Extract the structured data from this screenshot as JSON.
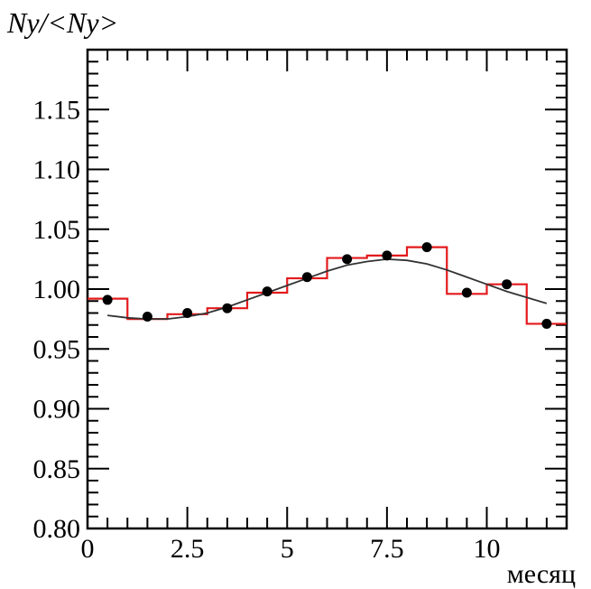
{
  "chart_data": {
    "type": "scatter",
    "title": "",
    "ylabel": "Ny/<Ny>",
    "xlabel": "месяц",
    "xlim": [
      0,
      12
    ],
    "ylim": [
      0.8,
      1.2
    ],
    "x_ticks": [
      "0",
      "2.5",
      "5",
      "7.5",
      "10"
    ],
    "x_tick_values": [
      0,
      2.5,
      5,
      7.5,
      10
    ],
    "y_ticks": [
      "0.80",
      "0.85",
      "0.90",
      "0.95",
      "1.00",
      "1.05",
      "1.10",
      "1.15"
    ],
    "y_tick_values": [
      0.8,
      0.85,
      0.9,
      0.95,
      1.0,
      1.05,
      1.1,
      1.15
    ],
    "grid": false,
    "series": [
      {
        "kind": "points",
        "color": "#000000",
        "x": [
          0.5,
          1.5,
          2.5,
          3.5,
          4.5,
          5.5,
          6.5,
          7.5,
          8.5,
          9.5,
          10.5,
          11.5
        ],
        "y": [
          0.991,
          0.977,
          0.98,
          0.984,
          0.998,
          1.01,
          1.025,
          1.028,
          1.035,
          0.997,
          1.004,
          0.971
        ]
      },
      {
        "kind": "histogram",
        "color": "#e31a1c",
        "bin_edges": [
          0,
          1,
          2,
          3,
          4,
          5,
          6,
          7,
          8,
          9,
          10,
          11,
          12
        ],
        "values": [
          0.992,
          0.975,
          0.979,
          0.984,
          0.997,
          1.009,
          1.026,
          1.028,
          1.035,
          0.996,
          1.004,
          0.971
        ]
      },
      {
        "kind": "fit-curve",
        "color": "#333333",
        "x": [
          0.5,
          1.0,
          1.5,
          2.0,
          2.5,
          3.0,
          3.5,
          4.0,
          4.5,
          5.0,
          5.5,
          6.0,
          6.5,
          7.0,
          7.5,
          8.0,
          8.5,
          9.0,
          9.5,
          10.0,
          10.5,
          11.0,
          11.5
        ],
        "y": [
          0.978,
          0.976,
          0.975,
          0.975,
          0.977,
          0.98,
          0.985,
          0.991,
          0.997,
          1.003,
          1.009,
          1.015,
          1.02,
          1.023,
          1.025,
          1.024,
          1.021,
          1.016,
          1.01,
          1.004,
          0.998,
          0.993,
          0.988
        ]
      }
    ]
  }
}
